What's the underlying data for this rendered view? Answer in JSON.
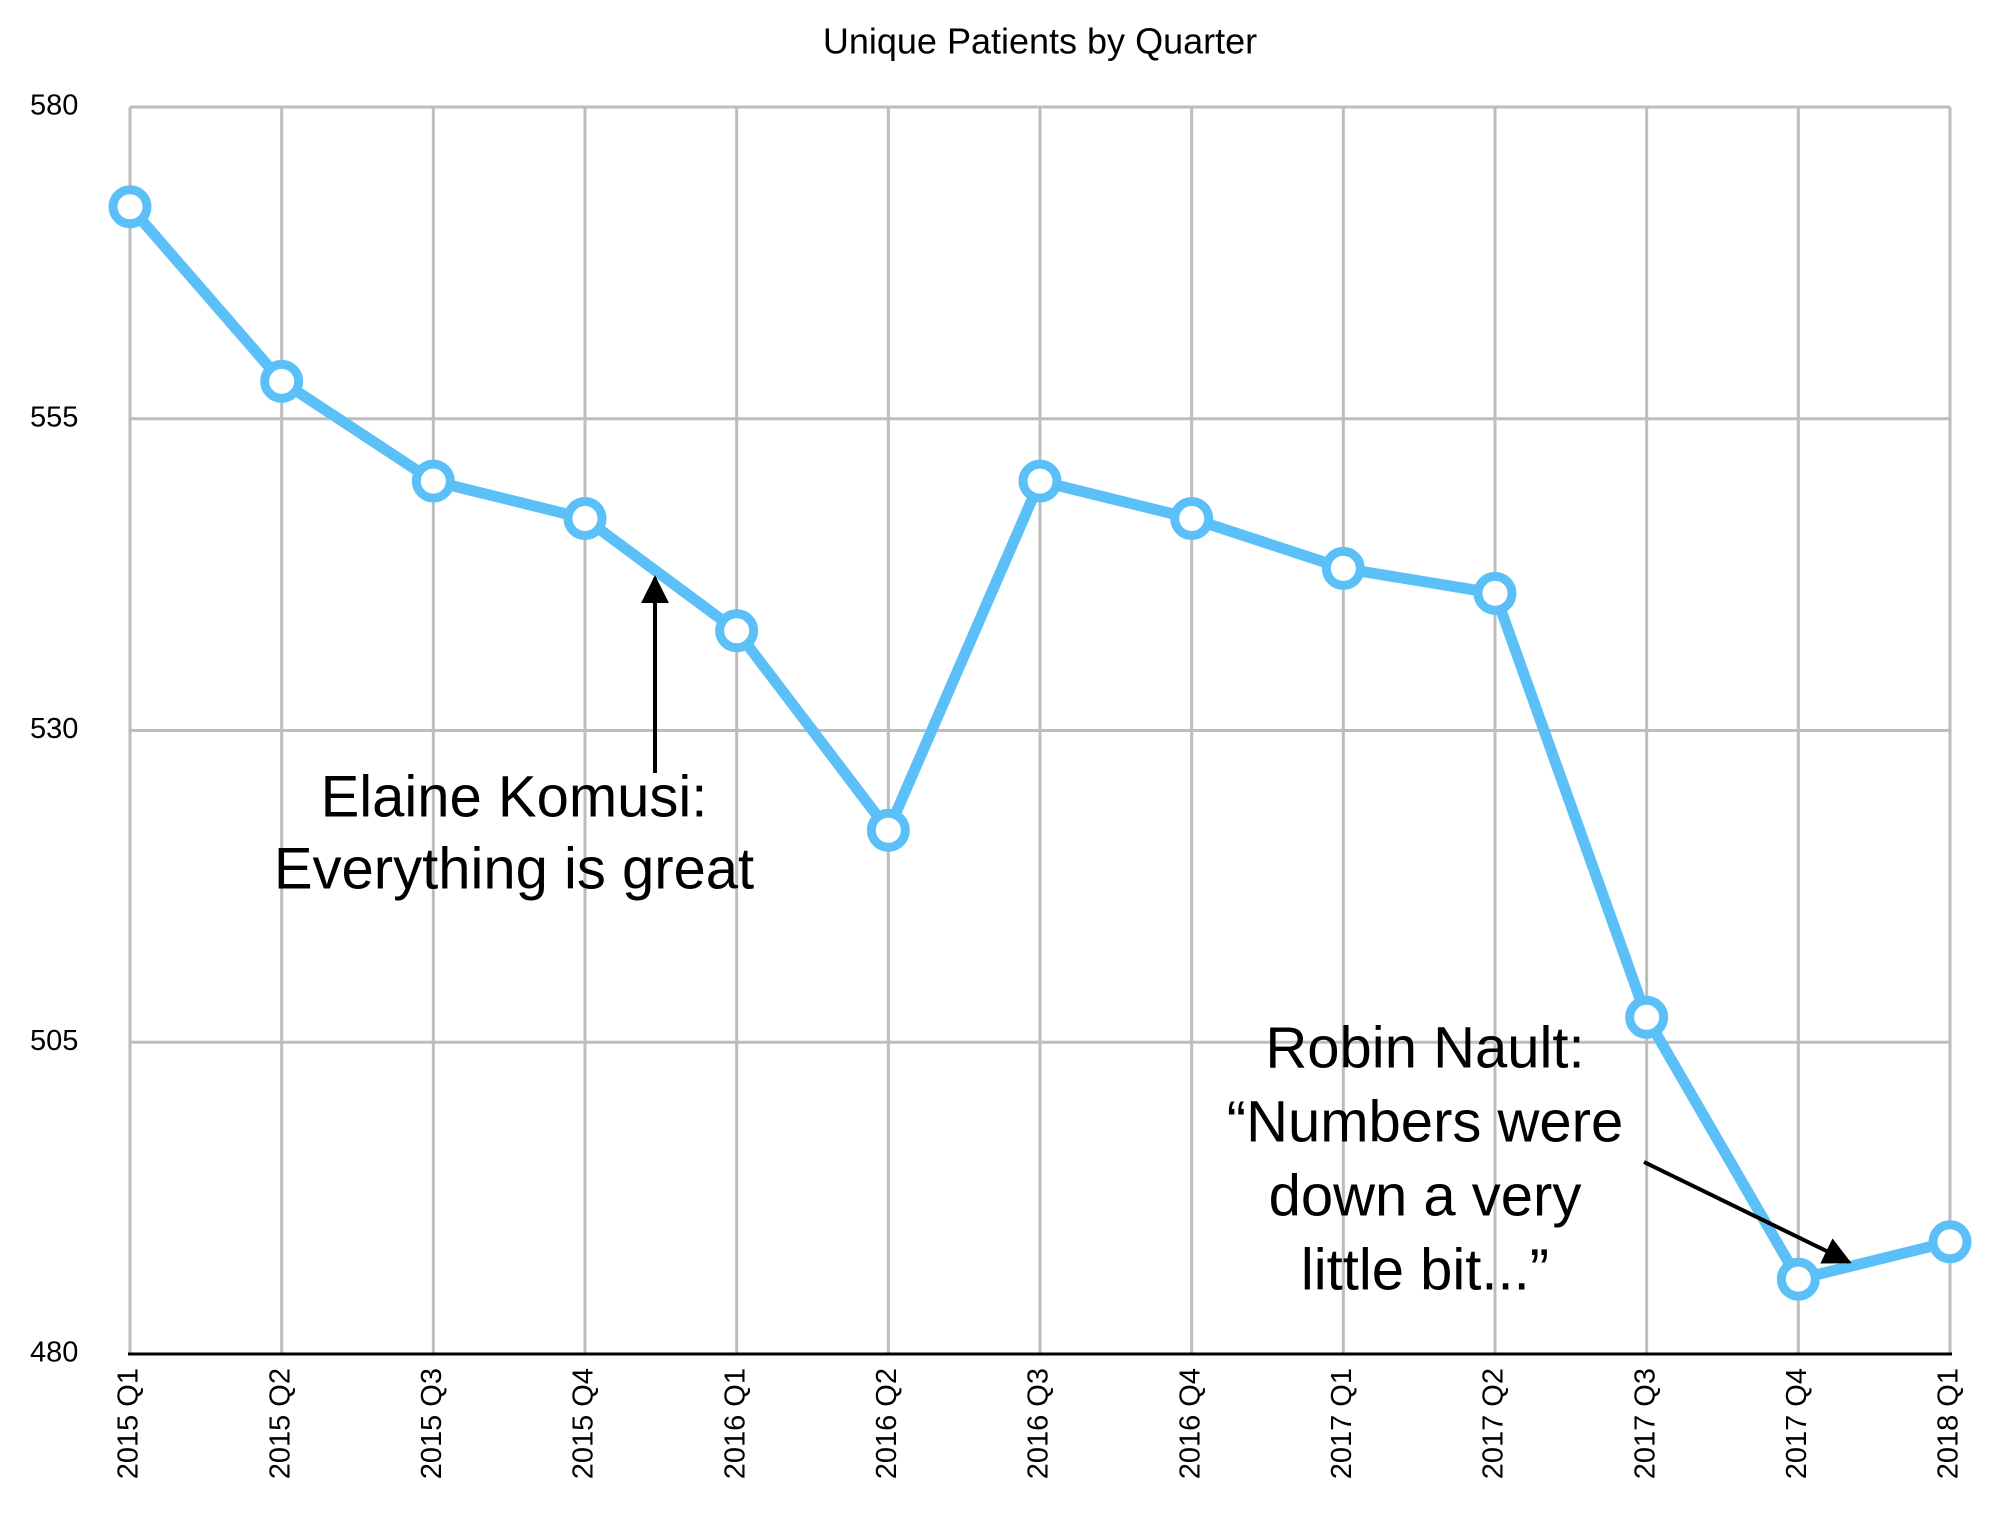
{
  "chart_data": {
    "type": "line",
    "title": "Unique Patients by Quarter",
    "categories": [
      "2015 Q1",
      "2015 Q2",
      "2015 Q3",
      "2015 Q4",
      "2016 Q1",
      "2016 Q2",
      "2016 Q3",
      "2016 Q4",
      "2017 Q1",
      "2017 Q2",
      "2017 Q3",
      "2017 Q4",
      "2018 Q1"
    ],
    "series": [
      {
        "color": "#5bc0f8",
        "values": [
          572,
          558,
          550,
          547,
          538,
          522,
          550,
          547,
          543,
          541,
          507,
          486,
          489
        ]
      }
    ],
    "ylim": [
      480,
      580
    ],
    "yticks": [
      480,
      505,
      530,
      555,
      580
    ],
    "grid": true,
    "annotations": [
      {
        "lines": [
          "Elaine Komusi:",
          "Everything is great"
        ]
      },
      {
        "lines": [
          "Robin Nault:",
          "“Numbers were",
          "down a very",
          "little bit...”"
        ]
      }
    ]
  }
}
